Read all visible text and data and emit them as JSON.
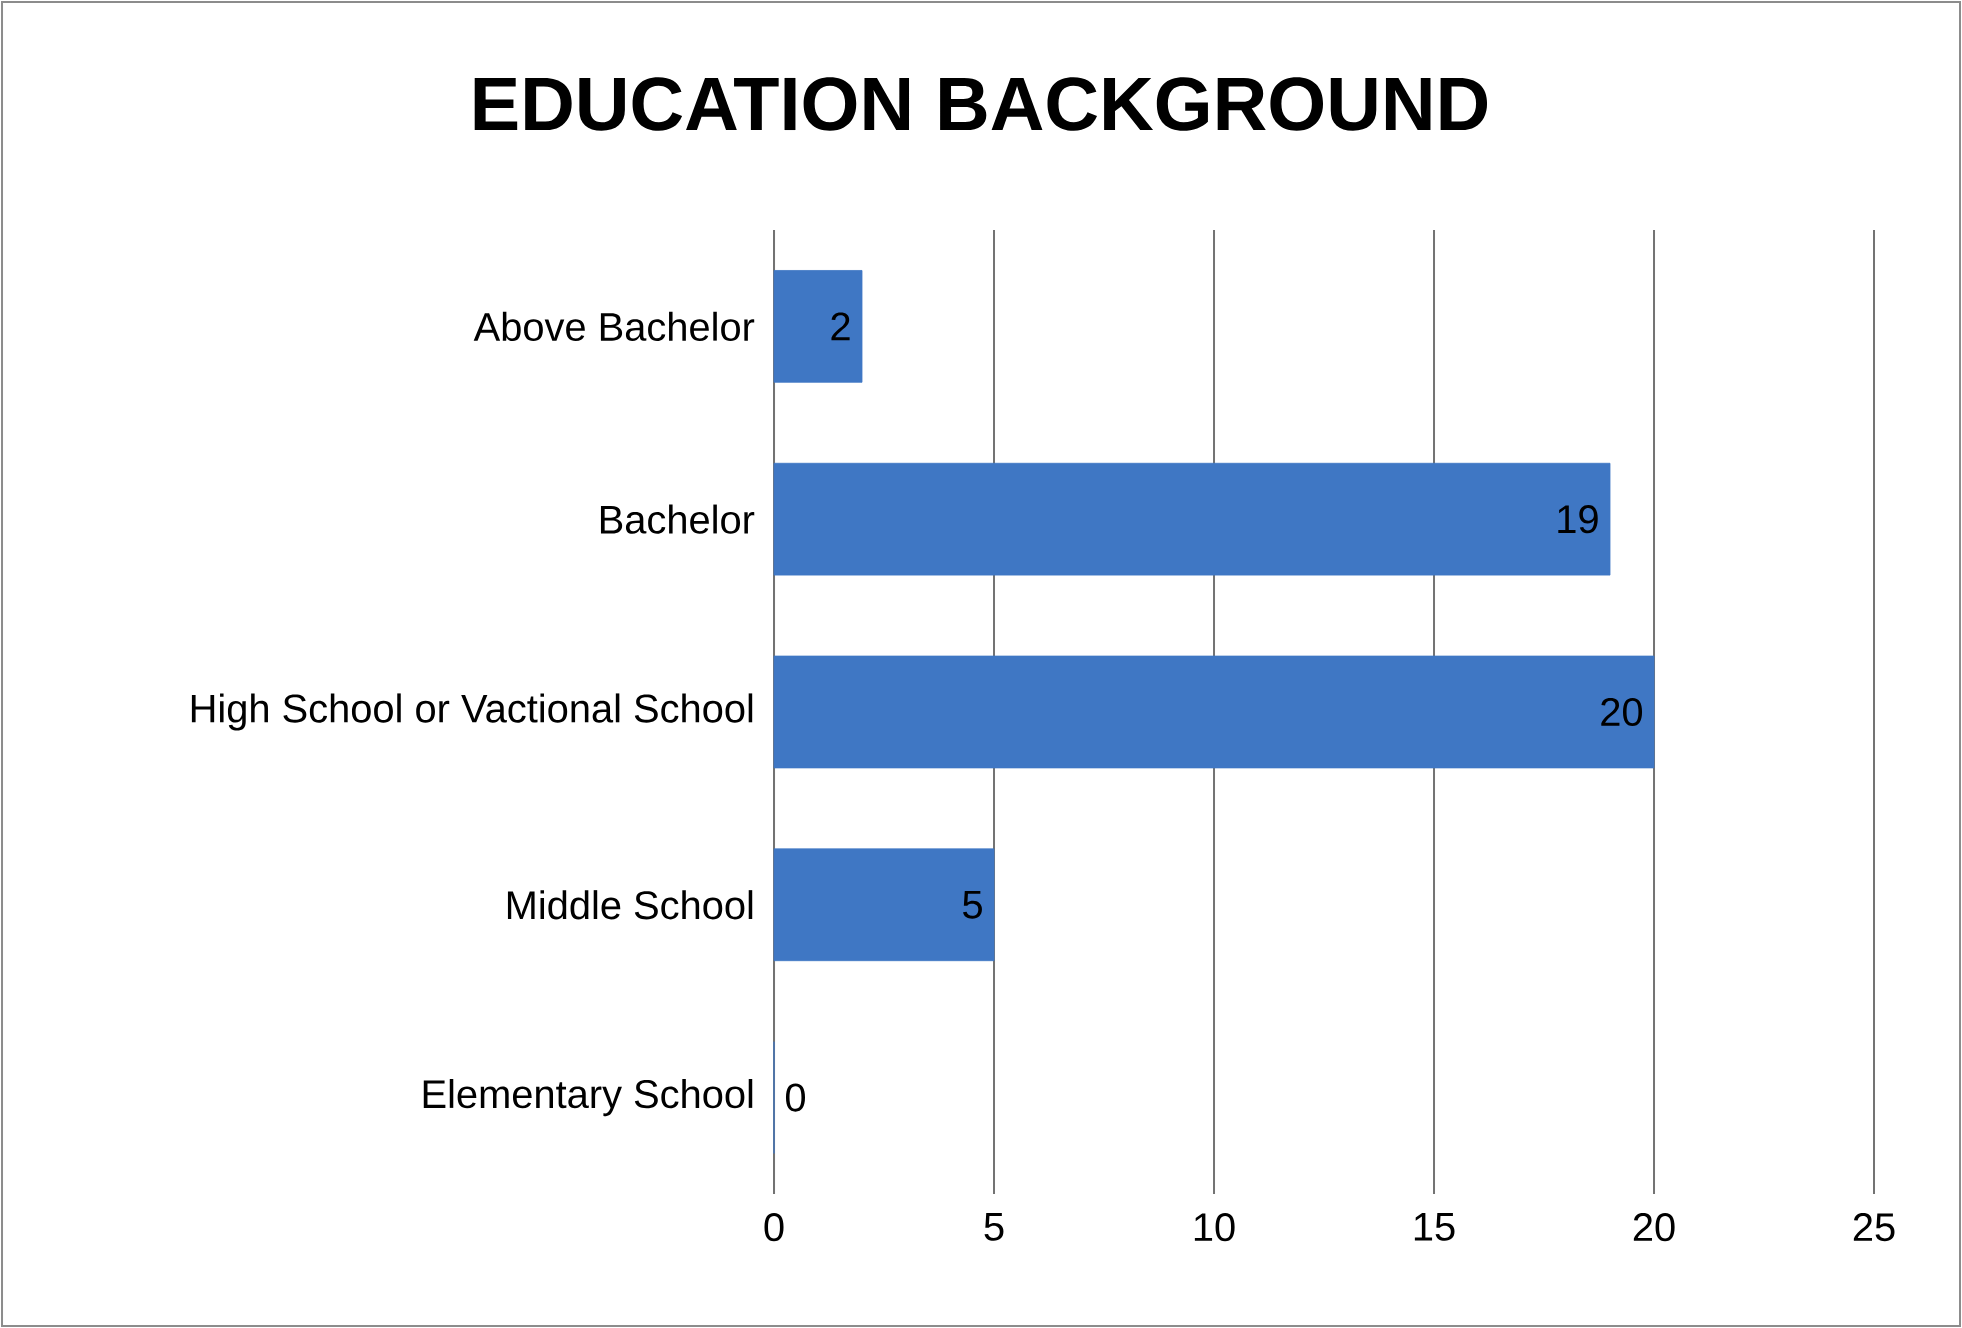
{
  "chart_data": {
    "type": "bar",
    "orientation": "horizontal",
    "title": "EDUCATION BACKGROUND",
    "categories": [
      "Above Bachelor",
      "Bachelor",
      "High School or Vactional School",
      "Middle School",
      "Elementary School"
    ],
    "values": [
      2,
      19,
      20,
      5,
      0
    ],
    "color": "#3f77c4",
    "xlim": [
      0,
      25
    ],
    "xticks": [
      0,
      5,
      10,
      15,
      20,
      25
    ],
    "grid": "x",
    "data_labels": true
  }
}
